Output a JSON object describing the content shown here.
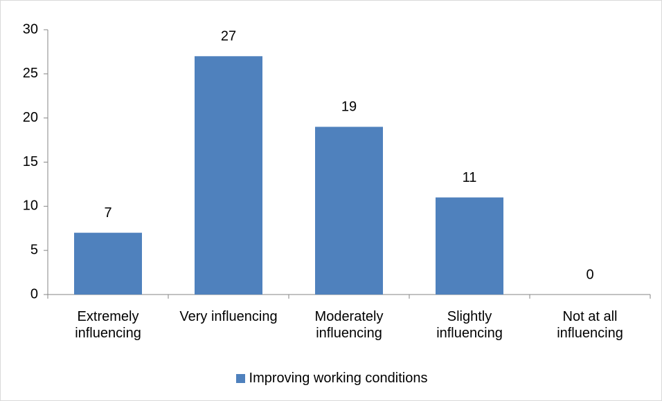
{
  "chart_data": {
    "type": "bar",
    "categories": [
      "Extremely influencing",
      "Very influencing",
      "Moderately influencing",
      "Slightly influencing",
      "Not at all influencing"
    ],
    "series": [
      {
        "name": "Improving working conditions",
        "color": "#4f81bd",
        "values": [
          7,
          27,
          19,
          11,
          0
        ]
      }
    ],
    "ylim": [
      0,
      30
    ],
    "yticks": [
      0,
      5,
      10,
      15,
      20,
      25,
      30
    ],
    "grid": false,
    "legend": "bottom",
    "data_labels": true
  }
}
